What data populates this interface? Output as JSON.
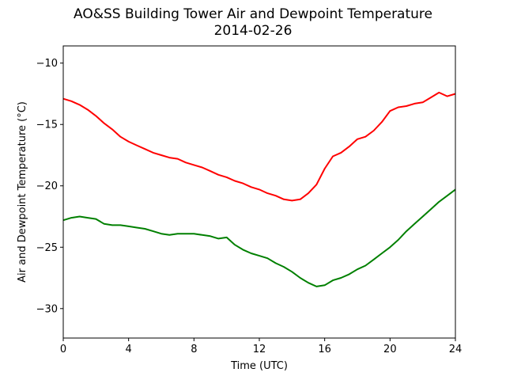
{
  "chart_data": {
    "type": "line",
    "title": "AO&SS Building Tower Air and Dewpoint Temperature",
    "subtitle": "2014-02-26",
    "xlabel": "Time (UTC)",
    "ylabel": "Air and Dewpoint Temperature (°C)",
    "xlim": [
      0,
      24
    ],
    "ylim": [
      -32.4,
      -8.6
    ],
    "xticks": [
      "0",
      "4",
      "8",
      "12",
      "16",
      "20",
      "24"
    ],
    "yticks": [
      "−10",
      "−15",
      "−20",
      "−25",
      "−30"
    ],
    "grid": false,
    "legend": "none",
    "series": [
      {
        "color": "#ff0000",
        "x": [
          0,
          0.5,
          1,
          1.5,
          2,
          2.5,
          3,
          3.5,
          4,
          4.5,
          5,
          5.5,
          6,
          6.5,
          7,
          7.5,
          8,
          8.5,
          9,
          9.5,
          10,
          10.5,
          11,
          11.5,
          12,
          12.5,
          13,
          13.5,
          14,
          14.5,
          15,
          15.5,
          16,
          16.5,
          17,
          17.5,
          18,
          18.5,
          19,
          19.5,
          20,
          20.5,
          21,
          21.5,
          22,
          22.5,
          23,
          23.5,
          24
        ],
        "y": [
          -12.9,
          -13.1,
          -13.4,
          -13.8,
          -14.3,
          -14.9,
          -15.4,
          -16.0,
          -16.4,
          -16.7,
          -17.0,
          -17.3,
          -17.5,
          -17.7,
          -17.8,
          -18.1,
          -18.3,
          -18.5,
          -18.8,
          -19.1,
          -19.3,
          -19.6,
          -19.8,
          -20.1,
          -20.3,
          -20.6,
          -20.8,
          -21.1,
          -21.2,
          -21.1,
          -20.6,
          -19.9,
          -18.6,
          -17.6,
          -17.3,
          -16.8,
          -16.2,
          -16.0,
          -15.5,
          -14.8,
          -13.9,
          -13.6,
          -13.5,
          -13.3,
          -13.2,
          -12.8,
          -12.4,
          -12.7,
          -12.5
        ]
      },
      {
        "color": "#008000",
        "x": [
          0,
          0.5,
          1,
          1.5,
          2,
          2.5,
          3,
          3.5,
          4,
          4.5,
          5,
          5.5,
          6,
          6.5,
          7,
          7.5,
          8,
          8.5,
          9,
          9.5,
          10,
          10.5,
          11,
          11.5,
          12,
          12.5,
          13,
          13.5,
          14,
          14.5,
          15,
          15.5,
          16,
          16.5,
          17,
          17.5,
          18,
          18.5,
          19,
          19.5,
          20,
          20.5,
          21,
          21.5,
          22,
          22.5,
          23,
          23.5,
          24
        ],
        "y": [
          -22.8,
          -22.6,
          -22.5,
          -22.6,
          -22.7,
          -23.1,
          -23.2,
          -23.2,
          -23.3,
          -23.4,
          -23.5,
          -23.7,
          -23.9,
          -24.0,
          -23.9,
          -23.9,
          -23.9,
          -24.0,
          -24.1,
          -24.3,
          -24.2,
          -24.8,
          -25.2,
          -25.5,
          -25.7,
          -25.9,
          -26.3,
          -26.6,
          -27.0,
          -27.5,
          -27.9,
          -28.2,
          -28.1,
          -27.7,
          -27.5,
          -27.2,
          -26.8,
          -26.5,
          -26.0,
          -25.5,
          -25.0,
          -24.4,
          -23.7,
          -23.1,
          -22.5,
          -21.9,
          -21.3,
          -20.8,
          -20.3
        ]
      }
    ]
  }
}
